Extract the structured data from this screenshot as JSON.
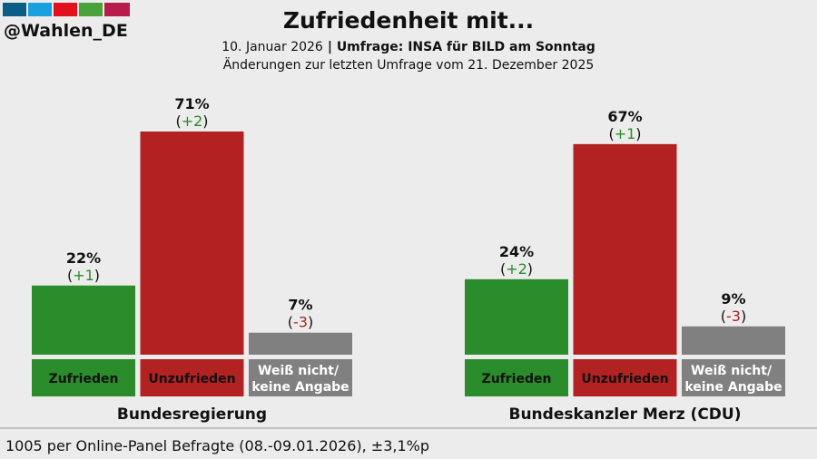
{
  "header": {
    "handle": "@Wahlen_DE",
    "title": "Zufriedenheit mit...",
    "date": "10. Januar 2026",
    "source": "| Umfrage: INSA für BILD am Sonntag",
    "note": "Änderungen zur letzten Umfrage vom 21. Dezember 2025"
  },
  "chart_data": [
    {
      "type": "bar",
      "title": "Bundesregierung",
      "categories": [
        "Zufrieden",
        "Unzufrieden",
        "Weiß nicht/ keine Angabe"
      ],
      "values": [
        22,
        71,
        7
      ],
      "value_labels": [
        "22%",
        "71%",
        "7%"
      ],
      "change_labels": [
        "(+1)",
        "(+2)",
        "(-3)"
      ],
      "colors": [
        "#2a8c2a",
        "#b22222",
        "#808080"
      ]
    },
    {
      "type": "bar",
      "title": "Bundeskanzler Merz (CDU)",
      "categories": [
        "Zufrieden",
        "Unzufrieden",
        "Weiß nicht/ keine Angabe"
      ],
      "values": [
        24,
        67,
        9
      ],
      "value_labels": [
        "24%",
        "67%",
        "9%"
      ],
      "change_labels": [
        "(+2)",
        "(+1)",
        "(-3)"
      ],
      "colors": [
        "#2a8c2a",
        "#b22222",
        "#808080"
      ]
    }
  ],
  "footer": "1005 per Online-Panel Befragte (08.-09.01.2026), ±3,1%p"
}
